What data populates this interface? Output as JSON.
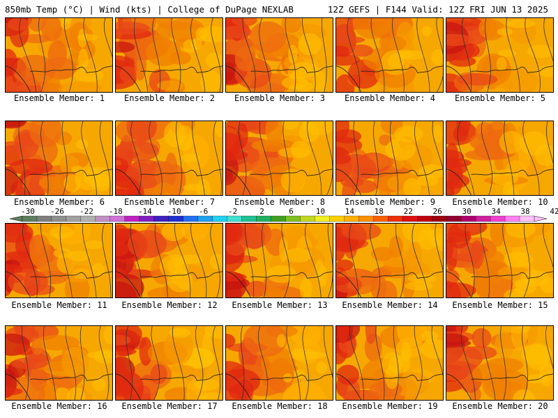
{
  "header": {
    "left_title": "850mb Temp (°C) | Wind (kts) | College of DuPage NEXLAB",
    "right_title": "12Z GEFS | F144 Valid: 12Z FRI JUN 13 2025"
  },
  "members": [
    {
      "label": "Ensemble Member: 1"
    },
    {
      "label": "Ensemble Member: 2"
    },
    {
      "label": "Ensemble Member: 3"
    },
    {
      "label": "Ensemble Member: 4"
    },
    {
      "label": "Ensemble Member: 5"
    },
    {
      "label": "Ensemble Member: 6"
    },
    {
      "label": "Ensemble Member: 7"
    },
    {
      "label": "Ensemble Member: 8"
    },
    {
      "label": "Ensemble Member: 9"
    },
    {
      "label": "Ensemble Member: 10"
    },
    {
      "label": "Ensemble Member: 11"
    },
    {
      "label": "Ensemble Member: 12"
    },
    {
      "label": "Ensemble Member: 13"
    },
    {
      "label": "Ensemble Member: 14"
    },
    {
      "label": "Ensemble Member: 15"
    },
    {
      "label": "Ensemble Member: 16"
    },
    {
      "label": "Ensemble Member: 17"
    },
    {
      "label": "Ensemble Member: 18"
    },
    {
      "label": "Ensemble Member: 19"
    },
    {
      "label": "Ensemble Member: 20"
    }
  ],
  "colorbar": {
    "tick_labels": [
      "-30",
      "-26",
      "-22",
      "-18",
      "-14",
      "-10",
      "-6",
      "-2",
      "2",
      "6",
      "10",
      "14",
      "18",
      "22",
      "26",
      "30",
      "34",
      "38",
      "42"
    ],
    "colors": [
      "#5f7f5f",
      "#7f7f7f",
      "#8f8f8f",
      "#a0a0a0",
      "#b0b0b0",
      "#c090c0",
      "#d070d8",
      "#c020c0",
      "#8020c0",
      "#4020c0",
      "#2030d0",
      "#2070f0",
      "#20a0f0",
      "#20d0f0",
      "#40e0d0",
      "#20c090",
      "#20b060",
      "#40a020",
      "#80c020",
      "#c0d820",
      "#f0f020",
      "#ffd000",
      "#ffb000",
      "#ff9000",
      "#ff6000",
      "#f03000",
      "#e01010",
      "#c00010",
      "#a00010",
      "#900030",
      "#b00070",
      "#d020a0",
      "#f040d0",
      "#ff80f0",
      "#ffc0f8"
    ]
  }
}
